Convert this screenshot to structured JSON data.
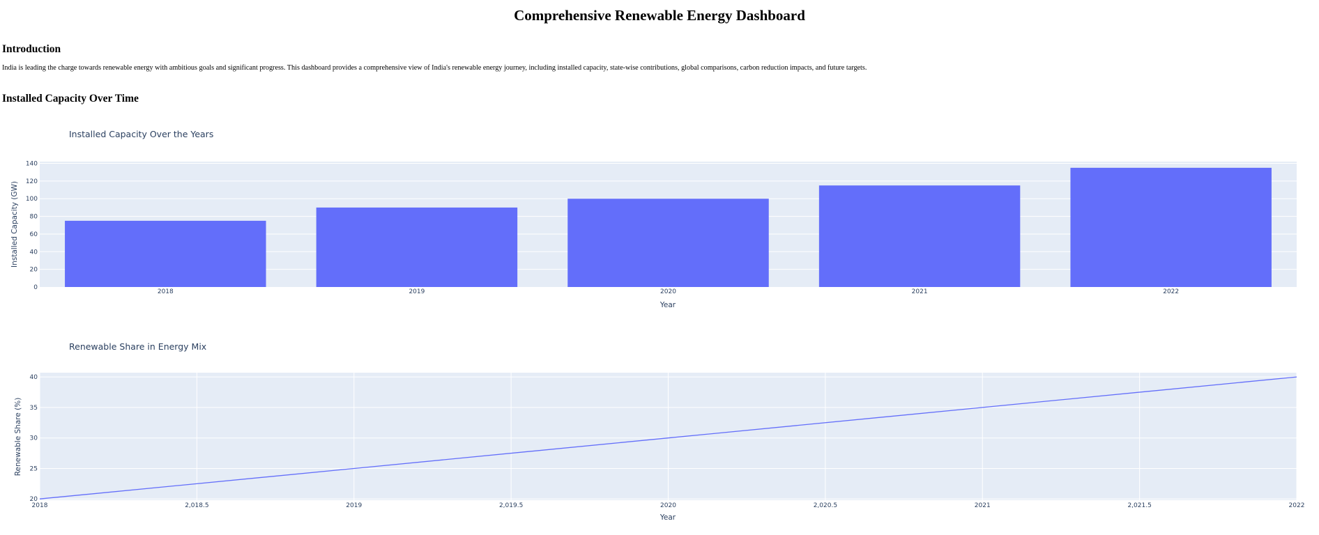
{
  "page": {
    "title": "Comprehensive Renewable Energy Dashboard",
    "intro_heading": "Introduction",
    "intro_text": "India is leading the charge towards renewable energy with ambitious goals and significant progress. This dashboard provides a comprehensive view of India's renewable energy journey, including installed capacity, state-wise contributions, global comparisons, carbon reduction impacts, and future targets.",
    "capacity_heading": "Installed Capacity Over Time"
  },
  "colors": {
    "series": "#636efa",
    "plot_background": "#e5ecf6",
    "grid": "#ffffff",
    "axis_text": "#2a3f5f"
  },
  "chart_data": [
    {
      "type": "bar",
      "title": "Installed Capacity Over the Years",
      "xlabel": "Year",
      "ylabel": "Installed Capacity (GW)",
      "categories": [
        "2018",
        "2019",
        "2020",
        "2021",
        "2022"
      ],
      "values": [
        75,
        90,
        100,
        115,
        135
      ],
      "ylim": [
        0,
        142
      ],
      "yticks": [
        0,
        20,
        40,
        60,
        80,
        100,
        120,
        140
      ],
      "grid": true,
      "legend": "none"
    },
    {
      "type": "line",
      "title": "Renewable Share in Energy Mix",
      "xlabel": "Year",
      "ylabel": "Renewable Share (%)",
      "x": [
        2018,
        2019,
        2020,
        2021,
        2022
      ],
      "values": [
        20,
        25,
        30,
        35,
        40
      ],
      "xlim": [
        2018,
        2022
      ],
      "ylim": [
        19.8,
        40.7
      ],
      "xticks": [
        2018,
        2018.5,
        2019,
        2019.5,
        2020,
        2020.5,
        2021,
        2021.5,
        2022
      ],
      "xtick_labels": [
        "2018",
        "2,018.5",
        "2019",
        "2,019.5",
        "2020",
        "2,020.5",
        "2021",
        "2,021.5",
        "2022"
      ],
      "yticks": [
        20,
        25,
        30,
        35,
        40
      ],
      "grid": true,
      "legend": "none"
    }
  ]
}
